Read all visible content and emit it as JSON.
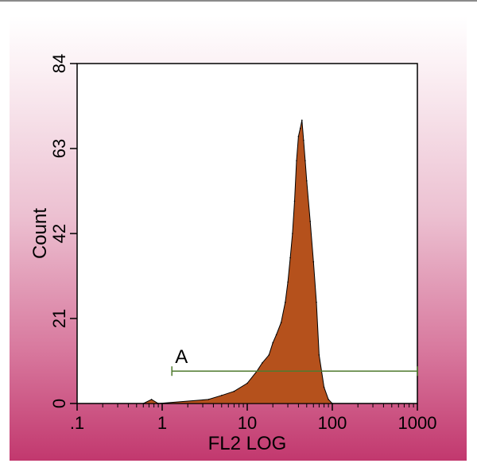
{
  "chart_data": {
    "type": "area",
    "xlabel": "FL2 LOG",
    "ylabel": "Count",
    "x_scale": "log",
    "xlim": [
      0.1,
      1000
    ],
    "ylim": [
      0,
      84
    ],
    "x_ticks": [
      {
        "value": 0.1,
        "label": ".1"
      },
      {
        "value": 1,
        "label": "1"
      },
      {
        "value": 10,
        "label": "10"
      },
      {
        "value": 100,
        "label": "100"
      },
      {
        "value": 1000,
        "label": "1000"
      }
    ],
    "y_ticks": [
      {
        "value": 0,
        "label": "0"
      },
      {
        "value": 21,
        "label": "21"
      },
      {
        "value": 42,
        "label": "42"
      },
      {
        "value": 63,
        "label": "63"
      },
      {
        "value": 84,
        "label": "84"
      }
    ],
    "grid": false,
    "fill_color": "#b5511c",
    "gate_color": "#4f7a2f",
    "x": [
      0.6,
      0.75,
      0.9,
      3.5,
      5,
      7,
      10,
      13,
      15,
      18,
      20,
      22,
      25,
      28,
      30,
      32,
      34,
      36,
      38,
      40,
      42,
      44,
      46,
      48,
      50,
      55,
      60,
      65,
      70,
      80,
      90,
      100
    ],
    "values": [
      0,
      1,
      0,
      1,
      2,
      3,
      5,
      8,
      10,
      12,
      15,
      17,
      20,
      25,
      30,
      36,
      42,
      50,
      60,
      66,
      68,
      70,
      65,
      60,
      55,
      45,
      35,
      25,
      12,
      4,
      1,
      0
    ],
    "gate": {
      "label": "A",
      "x_start": 1.3,
      "x_end": 1000,
      "y": 8
    }
  }
}
